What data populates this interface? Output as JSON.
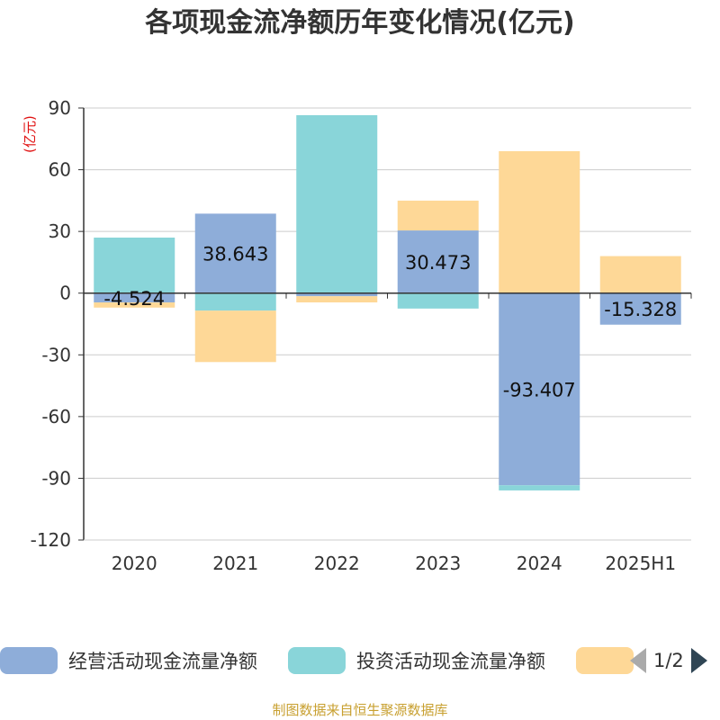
{
  "chart_data": {
    "type": "bar",
    "stacked": true,
    "title": "各项现金流净额历年变化情况(亿元)",
    "ylabel": "(亿元)",
    "ylim": [
      -120,
      90
    ],
    "yticks": [
      90,
      60,
      30,
      0,
      -30,
      -60,
      -90,
      -120
    ],
    "grid": true,
    "legend_position": "bottom",
    "categories": [
      "2020",
      "2021",
      "2022",
      "2023",
      "2024",
      "2025H1"
    ],
    "series": [
      {
        "name": "经营活动现金流量净额",
        "color": "#8eadd9",
        "values": [
          -4.524,
          38.643,
          -1.5,
          30.473,
          -93.407,
          -15.328
        ],
        "labels": [
          "-4.524",
          "38.643",
          "",
          "30.473",
          "-93.407",
          "-15.328"
        ]
      },
      {
        "name": "投资活动现金流量净额",
        "color": "#89d5d9",
        "values": [
          27,
          -8.5,
          86.5,
          -7.5,
          -2.5,
          0
        ],
        "labels": [
          "",
          "",
          "",
          "",
          "",
          ""
        ]
      },
      {
        "name": "",
        "color": "#fed897",
        "values": [
          -2.5,
          -25,
          -3,
          14.5,
          69,
          18
        ],
        "labels": [
          "",
          "",
          "",
          "",
          "",
          ""
        ]
      }
    ]
  },
  "legend": {
    "page": "1/2"
  },
  "source": "制图数据来自恒生聚源数据库"
}
